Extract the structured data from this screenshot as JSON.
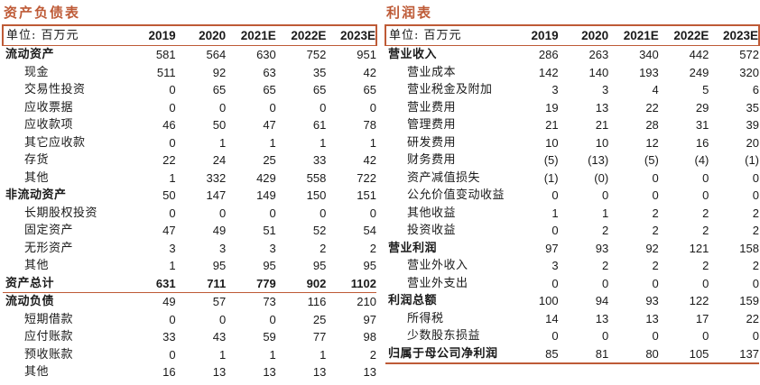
{
  "accent_color": "#BE5A36",
  "left_table": {
    "title": "资产负债表",
    "unit_label": "单位: 百万元",
    "columns": [
      "2019",
      "2020",
      "2021E",
      "2022E",
      "2023E"
    ],
    "rows": [
      {
        "label": "流动资产",
        "values": [
          "581",
          "564",
          "630",
          "752",
          "951"
        ],
        "bold": true
      },
      {
        "label": "现金",
        "values": [
          "511",
          "92",
          "63",
          "35",
          "42"
        ],
        "indent": true
      },
      {
        "label": "交易性投资",
        "values": [
          "0",
          "65",
          "65",
          "65",
          "65"
        ],
        "indent": true
      },
      {
        "label": "应收票据",
        "values": [
          "0",
          "0",
          "0",
          "0",
          "0"
        ],
        "indent": true
      },
      {
        "label": "应收款项",
        "values": [
          "46",
          "50",
          "47",
          "61",
          "78"
        ],
        "indent": true
      },
      {
        "label": "其它应收款",
        "values": [
          "0",
          "1",
          "1",
          "1",
          "1"
        ],
        "indent": true
      },
      {
        "label": "存货",
        "values": [
          "22",
          "24",
          "25",
          "33",
          "42"
        ],
        "indent": true
      },
      {
        "label": "其他",
        "values": [
          "1",
          "332",
          "429",
          "558",
          "722"
        ],
        "indent": true
      },
      {
        "label": "非流动资产",
        "values": [
          "50",
          "147",
          "149",
          "150",
          "151"
        ],
        "bold": true
      },
      {
        "label": "长期股权投资",
        "values": [
          "0",
          "0",
          "0",
          "0",
          "0"
        ],
        "indent": true
      },
      {
        "label": "固定资产",
        "values": [
          "47",
          "49",
          "51",
          "52",
          "54"
        ],
        "indent": true
      },
      {
        "label": "无形资产",
        "values": [
          "3",
          "3",
          "3",
          "2",
          "2"
        ],
        "indent": true
      },
      {
        "label": "其他",
        "values": [
          "1",
          "95",
          "95",
          "95",
          "95"
        ],
        "indent": true
      },
      {
        "label": "资产总计",
        "values": [
          "631",
          "711",
          "779",
          "902",
          "1102"
        ],
        "bold": true,
        "bold_values": true,
        "rule": "thin"
      },
      {
        "label": "流动负债",
        "values": [
          "49",
          "57",
          "73",
          "116",
          "210"
        ],
        "bold": true
      },
      {
        "label": "短期借款",
        "values": [
          "0",
          "0",
          "0",
          "25",
          "97"
        ],
        "indent": true
      },
      {
        "label": "应付账款",
        "values": [
          "33",
          "43",
          "59",
          "77",
          "98"
        ],
        "indent": true
      },
      {
        "label": "预收账款",
        "values": [
          "0",
          "1",
          "1",
          "1",
          "2"
        ],
        "indent": true
      },
      {
        "label": "其他",
        "values": [
          "16",
          "13",
          "13",
          "13",
          "13"
        ],
        "indent": true
      }
    ]
  },
  "right_table": {
    "title": "利润表",
    "unit_label": "单位: 百万元",
    "columns": [
      "2019",
      "2020",
      "2021E",
      "2022E",
      "2023E"
    ],
    "rows": [
      {
        "label": "营业收入",
        "values": [
          "286",
          "263",
          "340",
          "442",
          "572"
        ],
        "bold": true
      },
      {
        "label": "营业成本",
        "values": [
          "142",
          "140",
          "193",
          "249",
          "320"
        ],
        "indent": true
      },
      {
        "label": "营业税金及附加",
        "values": [
          "3",
          "3",
          "4",
          "5",
          "6"
        ],
        "indent": true
      },
      {
        "label": "营业费用",
        "values": [
          "19",
          "13",
          "22",
          "29",
          "35"
        ],
        "indent": true
      },
      {
        "label": "管理费用",
        "values": [
          "21",
          "21",
          "28",
          "31",
          "39"
        ],
        "indent": true
      },
      {
        "label": "研发费用",
        "values": [
          "10",
          "10",
          "12",
          "16",
          "20"
        ],
        "indent": true
      },
      {
        "label": "财务费用",
        "values": [
          "(5)",
          "(13)",
          "(5)",
          "(4)",
          "(1)"
        ],
        "indent": true
      },
      {
        "label": "资产减值损失",
        "values": [
          "(1)",
          "(0)",
          "0",
          "0",
          "0"
        ],
        "indent": true
      },
      {
        "label": "公允价值变动收益",
        "values": [
          "0",
          "0",
          "0",
          "0",
          "0"
        ],
        "indent": true
      },
      {
        "label": "其他收益",
        "values": [
          "1",
          "1",
          "2",
          "2",
          "2"
        ],
        "indent": true
      },
      {
        "label": "投资收益",
        "values": [
          "0",
          "2",
          "2",
          "2",
          "2"
        ],
        "indent": true
      },
      {
        "label": "营业利润",
        "values": [
          "97",
          "93",
          "92",
          "121",
          "158"
        ],
        "bold": true
      },
      {
        "label": "营业外收入",
        "values": [
          "3",
          "2",
          "2",
          "2",
          "2"
        ],
        "indent": true
      },
      {
        "label": "营业外支出",
        "values": [
          "0",
          "0",
          "0",
          "0",
          "0"
        ],
        "indent": true
      },
      {
        "label": "利润总额",
        "values": [
          "100",
          "94",
          "93",
          "122",
          "159"
        ],
        "bold": true
      },
      {
        "label": "所得税",
        "values": [
          "14",
          "13",
          "13",
          "17",
          "22"
        ],
        "indent": true
      },
      {
        "label": "少数股东损益",
        "values": [
          "0",
          "0",
          "0",
          "0",
          "0"
        ],
        "indent": true
      },
      {
        "label": "归属于母公司净利润",
        "values": [
          "85",
          "81",
          "80",
          "105",
          "137"
        ],
        "bold": true,
        "rule": "thick"
      }
    ]
  }
}
